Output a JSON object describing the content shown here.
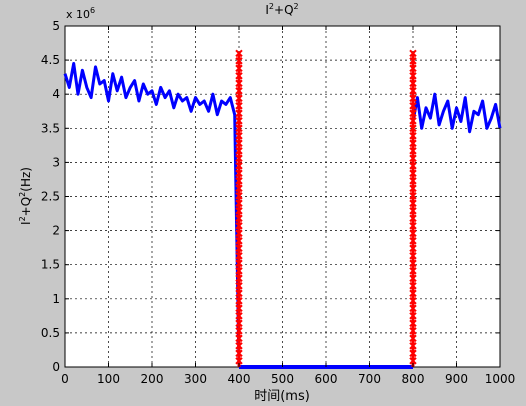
{
  "chart_data": {
    "type": "line",
    "title_base": "I",
    "title_sup1": "2",
    "title_mid": "+Q",
    "title_sup2": "2",
    "xlabel": "时间(ms)",
    "ylabel_base": "I",
    "ylabel_sup1": "2",
    "ylabel_mid": "+Q",
    "ylabel_sup2": "2",
    "ylabel_unit": "(Hz)",
    "y_multiplier_base": "x 10",
    "y_multiplier_exp": "6",
    "xlim": [
      0,
      1000
    ],
    "ylim": [
      0,
      5
    ],
    "xticks": [
      "0",
      "100",
      "200",
      "300",
      "400",
      "500",
      "600",
      "700",
      "800",
      "900",
      "1000"
    ],
    "yticks": [
      "0",
      "0.5",
      "1",
      "1.5",
      "2",
      "2.5",
      "3",
      "3.5",
      "4",
      "4.5",
      "5"
    ],
    "grid": true,
    "series": [
      {
        "color": "#0000ff",
        "x": [
          0,
          10,
          20,
          30,
          40,
          50,
          60,
          70,
          80,
          90,
          100,
          110,
          120,
          130,
          140,
          150,
          160,
          170,
          180,
          190,
          200,
          210,
          220,
          230,
          240,
          250,
          260,
          270,
          280,
          290,
          300,
          310,
          320,
          330,
          340,
          350,
          360,
          370,
          380,
          390,
          400,
          800,
          810,
          820,
          830,
          840,
          850,
          860,
          870,
          880,
          890,
          900,
          910,
          920,
          930,
          940,
          950,
          960,
          970,
          980,
          990,
          1000
        ],
        "y": [
          4.3,
          4.1,
          4.45,
          4.0,
          4.35,
          4.1,
          3.95,
          4.4,
          4.15,
          4.2,
          3.9,
          4.3,
          4.05,
          4.25,
          3.95,
          4.1,
          4.2,
          3.9,
          4.15,
          4.0,
          4.05,
          3.85,
          4.1,
          3.95,
          4.05,
          3.8,
          4.0,
          3.9,
          3.95,
          3.75,
          3.95,
          3.85,
          3.9,
          3.75,
          4.0,
          3.7,
          3.9,
          3.85,
          3.95,
          3.7,
          0,
          3.6,
          3.95,
          3.5,
          3.8,
          3.65,
          4.0,
          3.55,
          3.75,
          3.9,
          3.5,
          3.8,
          3.6,
          3.95,
          3.45,
          3.75,
          3.7,
          3.9,
          3.5,
          3.65,
          3.85,
          3.5
        ]
      },
      {
        "color": "#ff0000",
        "x": [
          400,
          400
        ],
        "y": [
          0,
          4.6
        ]
      },
      {
        "color": "#ff0000",
        "x": [
          800,
          800
        ],
        "y": [
          0,
          4.6
        ]
      }
    ]
  }
}
